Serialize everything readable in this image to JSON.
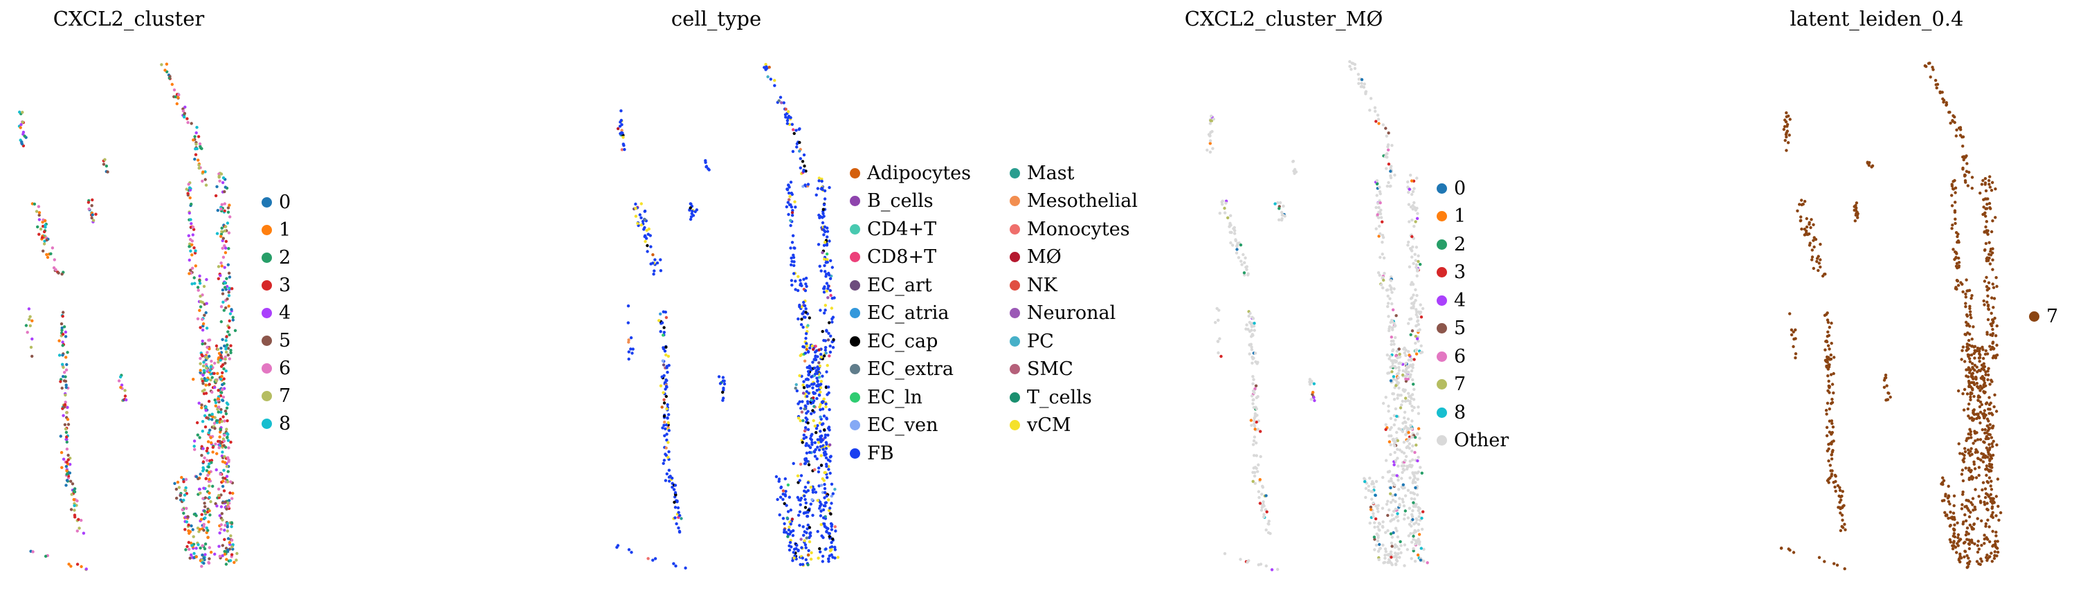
{
  "chart_data": [
    {
      "type": "scatter",
      "title": "CXCL2_cluster",
      "xlabel": "",
      "ylabel": "",
      "grid": false,
      "legend_placement": "right",
      "legend": [
        {
          "label": "0",
          "color": "#1f77b4"
        },
        {
          "label": "1",
          "color": "#ff7f0e"
        },
        {
          "label": "2",
          "color": "#279e68"
        },
        {
          "label": "3",
          "color": "#d62728"
        },
        {
          "label": "4",
          "color": "#aa40fc"
        },
        {
          "label": "5",
          "color": "#8c564b"
        },
        {
          "label": "6",
          "color": "#e377c2"
        },
        {
          "label": "7",
          "color": "#b5bd61"
        },
        {
          "label": "8",
          "color": "#17becf"
        }
      ]
    },
    {
      "type": "scatter",
      "title": "cell_type",
      "xlabel": "",
      "ylabel": "",
      "grid": false,
      "legend_placement": "right",
      "legend": [
        {
          "label": "Adipocytes",
          "color": "#d45f0c"
        },
        {
          "label": "B_cells",
          "color": "#8e44ad"
        },
        {
          "label": "CD4+T",
          "color": "#48c9b0"
        },
        {
          "label": "CD8+T",
          "color": "#ec407a"
        },
        {
          "label": "EC_art",
          "color": "#6d4c7d"
        },
        {
          "label": "EC_atria",
          "color": "#3498db"
        },
        {
          "label": "EC_cap",
          "color": "#000000"
        },
        {
          "label": "EC_extra",
          "color": "#607d8b"
        },
        {
          "label": "EC_ln",
          "color": "#2ecc71"
        },
        {
          "label": "EC_ven",
          "color": "#85a9f5"
        },
        {
          "label": "FB",
          "color": "#1a3ff0"
        },
        {
          "label": "Mast",
          "color": "#2a9d8f"
        },
        {
          "label": "Mesothelial",
          "color": "#f28e50"
        },
        {
          "label": "Monocytes",
          "color": "#ef6f6c"
        },
        {
          "label": "MØ",
          "color": "#b5192f"
        },
        {
          "label": "NK",
          "color": "#e04e42"
        },
        {
          "label": "Neuronal",
          "color": "#9b59b6"
        },
        {
          "label": "PC",
          "color": "#46b0c8"
        },
        {
          "label": "SMC",
          "color": "#b5607a"
        },
        {
          "label": "T_cells",
          "color": "#1a8f6f"
        },
        {
          "label": "vCM",
          "color": "#f5e12a"
        }
      ]
    },
    {
      "type": "scatter",
      "title": "CXCL2_cluster_MØ",
      "xlabel": "",
      "ylabel": "",
      "grid": false,
      "legend_placement": "right",
      "legend": [
        {
          "label": "0",
          "color": "#1f77b4"
        },
        {
          "label": "1",
          "color": "#ff7f0e"
        },
        {
          "label": "2",
          "color": "#279e68"
        },
        {
          "label": "3",
          "color": "#d62728"
        },
        {
          "label": "4",
          "color": "#aa40fc"
        },
        {
          "label": "5",
          "color": "#8c564b"
        },
        {
          "label": "6",
          "color": "#e377c2"
        },
        {
          "label": "7",
          "color": "#b5bd61"
        },
        {
          "label": "8",
          "color": "#17becf"
        },
        {
          "label": "Other",
          "color": "#d9d9d9"
        }
      ]
    },
    {
      "type": "scatter",
      "title": "latent_leiden_0.4",
      "xlabel": "",
      "ylabel": "",
      "grid": false,
      "legend_placement": "right",
      "legend": [
        {
          "label": "7",
          "color": "#8b4513"
        }
      ]
    }
  ]
}
